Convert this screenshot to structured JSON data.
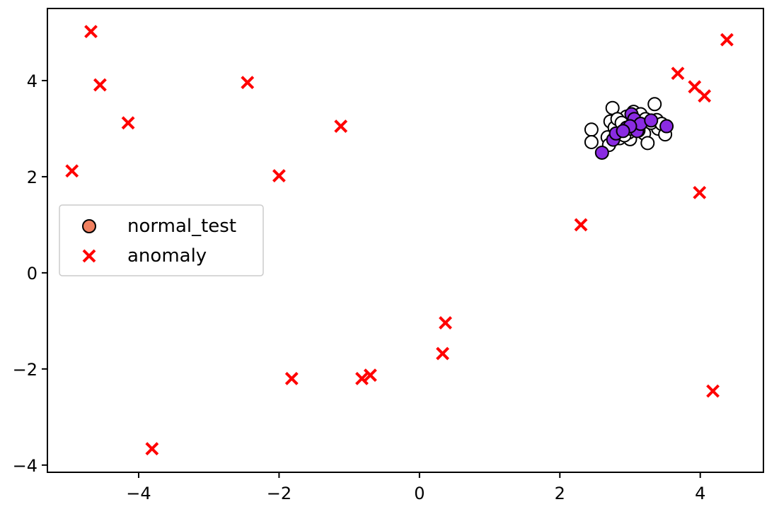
{
  "chart_data": {
    "type": "scatter",
    "xlim": [
      -5.3,
      4.9
    ],
    "ylim": [
      -4.15,
      5.5
    ],
    "xticks": [
      -4,
      -2,
      0,
      2,
      4
    ],
    "yticks": [
      -4,
      -2,
      0,
      2,
      4
    ],
    "xtick_labels": [
      "−4",
      "−2",
      "0",
      "2",
      "4"
    ],
    "ytick_labels": [
      "−4",
      "−2",
      "0",
      "2",
      "4"
    ],
    "legend": {
      "placement": "center-left",
      "entries": [
        "normal_test",
        "anomaly"
      ]
    },
    "series": [
      {
        "name": "",
        "marker": "circle-open",
        "color": "#ffffff",
        "edge_color": "#000000",
        "points": [
          [
            2.45,
            2.98
          ],
          [
            2.45,
            2.72
          ],
          [
            2.75,
            3.43
          ],
          [
            3.35,
            3.51
          ],
          [
            2.72,
            3.15
          ],
          [
            2.85,
            2.8
          ],
          [
            2.95,
            3.25
          ],
          [
            3.05,
            3.35
          ],
          [
            2.9,
            3.05
          ],
          [
            3.2,
            2.9
          ],
          [
            3.4,
            3.0
          ],
          [
            3.5,
            2.88
          ],
          [
            3.25,
            2.7
          ],
          [
            2.68,
            2.82
          ],
          [
            2.78,
            3.02
          ],
          [
            3.0,
            2.78
          ],
          [
            3.1,
            3.15
          ],
          [
            3.15,
            3.3
          ],
          [
            2.82,
            3.2
          ],
          [
            2.98,
            2.92
          ],
          [
            3.05,
            3.08
          ],
          [
            3.3,
            3.12
          ],
          [
            2.92,
            2.86
          ],
          [
            3.12,
            2.96
          ],
          [
            2.88,
            3.12
          ],
          [
            3.22,
            3.2
          ],
          [
            3.38,
            3.18
          ],
          [
            2.7,
            2.66
          ],
          [
            3.0,
            3.0
          ],
          [
            3.45,
            3.1
          ]
        ]
      },
      {
        "name": "",
        "marker": "circle",
        "color": "#8a2be2",
        "edge_color": "#000000",
        "points": [
          [
            2.6,
            2.5
          ],
          [
            2.76,
            2.77
          ],
          [
            2.8,
            2.9
          ],
          [
            2.95,
            3.02
          ],
          [
            3.02,
            3.3
          ],
          [
            3.06,
            3.2
          ],
          [
            3.1,
            2.95
          ],
          [
            3.15,
            3.1
          ],
          [
            3.3,
            3.17
          ],
          [
            3.52,
            3.05
          ],
          [
            3.0,
            3.05
          ],
          [
            2.9,
            2.95
          ]
        ]
      },
      {
        "name": "anomaly",
        "marker": "x",
        "color": "#ff0000",
        "points": [
          [
            -4.68,
            5.02
          ],
          [
            -4.55,
            3.91
          ],
          [
            -4.15,
            3.12
          ],
          [
            -4.95,
            2.12
          ],
          [
            -2.45,
            3.96
          ],
          [
            -2.0,
            2.02
          ],
          [
            -1.12,
            3.05
          ],
          [
            -1.82,
            -2.2
          ],
          [
            -0.82,
            -2.2
          ],
          [
            -0.7,
            -2.13
          ],
          [
            0.33,
            -1.68
          ],
          [
            0.37,
            -1.04
          ],
          [
            -3.81,
            -3.66
          ],
          [
            2.3,
            1.0
          ],
          [
            3.68,
            4.15
          ],
          [
            3.92,
            3.87
          ],
          [
            4.06,
            3.68
          ],
          [
            3.99,
            1.67
          ],
          [
            4.38,
            4.85
          ],
          [
            4.18,
            -2.46
          ]
        ]
      }
    ],
    "legend_colors": {
      "normal_test_face": "#f08060",
      "normal_test_edge": "#000000",
      "anomaly": "#ff0000"
    }
  }
}
